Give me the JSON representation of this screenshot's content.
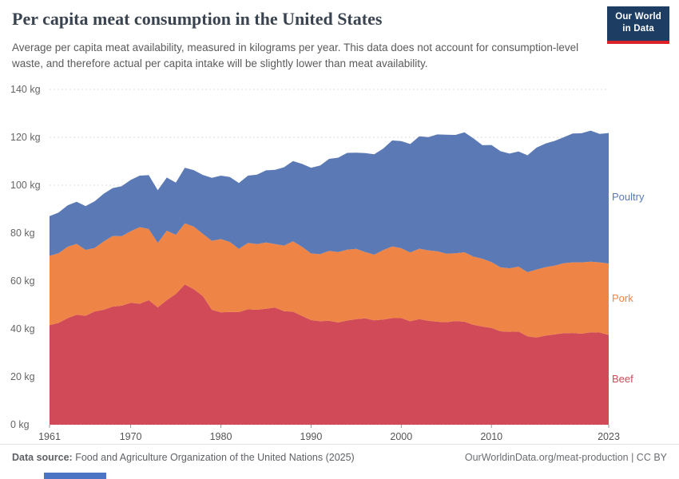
{
  "header": {
    "title": "Per capita meat consumption in the United States",
    "subtitle": "Average per capita meat availability, measured in kilograms per year. This data does not account for consumption-level waste, and therefore actual per capita intake will be slightly lower than meat availability.",
    "logo": {
      "line1": "Our World",
      "line2": "in Data"
    }
  },
  "chart_data": {
    "type": "area",
    "stacked": true,
    "title": "Per capita meat consumption in the United States",
    "xlabel": "",
    "ylabel": "",
    "ylim": [
      0,
      140
    ],
    "yticks": [
      0,
      20,
      40,
      60,
      80,
      100,
      120,
      140
    ],
    "ytick_suffix": " kg",
    "xticks": [
      1961,
      1970,
      1980,
      1990,
      2000,
      2010,
      2023
    ],
    "grid": true,
    "legend_position": "right",
    "x": [
      1961,
      1962,
      1963,
      1964,
      1965,
      1966,
      1967,
      1968,
      1969,
      1970,
      1971,
      1972,
      1973,
      1974,
      1975,
      1976,
      1977,
      1978,
      1979,
      1980,
      1981,
      1982,
      1983,
      1984,
      1985,
      1986,
      1987,
      1988,
      1989,
      1990,
      1991,
      1992,
      1993,
      1994,
      1995,
      1996,
      1997,
      1998,
      1999,
      2000,
      2001,
      2002,
      2003,
      2004,
      2005,
      2006,
      2007,
      2008,
      2009,
      2010,
      2011,
      2012,
      2013,
      2014,
      2015,
      2016,
      2017,
      2018,
      2019,
      2020,
      2021,
      2022,
      2023
    ],
    "series": [
      {
        "name": "Beef",
        "color": "#d04a57",
        "values": [
          41.6,
          42.5,
          44.5,
          45.9,
          45.5,
          47.3,
          48.0,
          49.3,
          49.7,
          50.9,
          50.5,
          52.0,
          49.0,
          52.0,
          54.6,
          58.6,
          56.6,
          53.7,
          48.0,
          46.9,
          47.1,
          47.0,
          48.2,
          48.0,
          48.4,
          48.9,
          47.4,
          47.2,
          45.4,
          43.7,
          43.2,
          43.4,
          42.7,
          43.5,
          44.1,
          44.4,
          43.6,
          43.9,
          44.5,
          44.5,
          43.2,
          44.1,
          43.4,
          43.0,
          42.8,
          43.3,
          43.0,
          41.7,
          41.0,
          40.4,
          39.0,
          38.8,
          38.9,
          36.9,
          36.4,
          37.2,
          37.7,
          38.2,
          38.3,
          38.0,
          38.6,
          38.5,
          37.5
        ]
      },
      {
        "name": "Pork",
        "color": "#ee8445",
        "values": [
          28.9,
          29.1,
          29.8,
          29.6,
          27.5,
          26.5,
          28.5,
          29.5,
          29.0,
          29.9,
          32.0,
          29.7,
          26.9,
          29.0,
          24.7,
          25.5,
          26.1,
          26.0,
          28.8,
          30.6,
          29.2,
          26.4,
          27.7,
          27.4,
          27.7,
          26.5,
          27.4,
          29.4,
          28.9,
          27.8,
          28.0,
          29.2,
          29.4,
          29.6,
          29.3,
          27.7,
          27.4,
          29.0,
          29.9,
          29.2,
          28.7,
          29.4,
          29.4,
          29.4,
          28.6,
          28.3,
          29.0,
          28.5,
          28.3,
          27.5,
          26.7,
          26.5,
          27.1,
          26.8,
          28.4,
          28.6,
          28.7,
          29.2,
          29.5,
          29.8,
          29.5,
          29.3,
          29.8
        ]
      },
      {
        "name": "Poultry",
        "color": "#5b7ab5",
        "values": [
          16.6,
          17.0,
          17.3,
          17.6,
          18.3,
          19.5,
          19.9,
          20.0,
          20.9,
          21.4,
          21.5,
          22.5,
          22.0,
          22.2,
          21.8,
          23.2,
          23.6,
          24.6,
          26.3,
          26.5,
          27.1,
          27.5,
          28.1,
          29.0,
          30.1,
          31.0,
          32.7,
          33.5,
          34.6,
          35.8,
          37.0,
          38.4,
          39.4,
          40.4,
          40.2,
          41.3,
          41.9,
          42.4,
          44.3,
          44.7,
          45.3,
          46.9,
          47.3,
          48.8,
          49.7,
          49.4,
          50.1,
          49.4,
          47.4,
          48.9,
          48.5,
          47.9,
          48.1,
          48.8,
          50.9,
          51.6,
          52.1,
          52.6,
          53.8,
          53.9,
          54.7,
          53.6,
          54.5
        ]
      }
    ]
  },
  "footer": {
    "datasource_label": "Data source:",
    "datasource_text": " Food and Agriculture Organization of the United Nations (2025)",
    "rights": "OurWorldinData.org/meat-production | CC BY"
  }
}
